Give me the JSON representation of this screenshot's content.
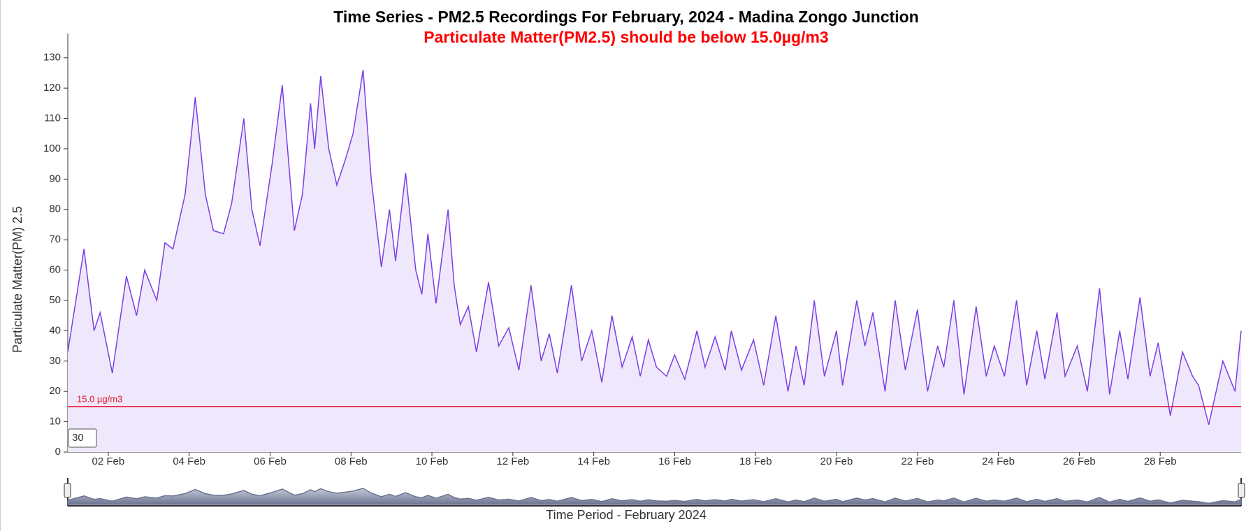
{
  "chart_data": {
    "type": "line",
    "title": "Time Series - PM2.5 Recordings For February, 2024 - Madina Zongo Junction",
    "subtitle": "Particulate Matter(PM2.5) should be below 15.0µg/m3",
    "y_label": "Particulate Matter(PM) 2.5",
    "x_label": "Time Period - February 2024",
    "x": [
      1.0,
      1.4,
      1.65,
      1.8,
      2.1,
      2.45,
      2.7,
      2.9,
      3.2,
      3.4,
      3.6,
      3.9,
      4.15,
      4.4,
      4.6,
      4.85,
      5.05,
      5.35,
      5.55,
      5.75,
      6.05,
      6.3,
      6.6,
      6.8,
      7.0,
      7.1,
      7.25,
      7.45,
      7.65,
      7.85,
      8.05,
      8.3,
      8.5,
      8.75,
      8.95,
      9.1,
      9.35,
      9.6,
      9.75,
      9.9,
      10.1,
      10.4,
      10.55,
      10.7,
      10.9,
      11.1,
      11.4,
      11.65,
      11.9,
      12.15,
      12.45,
      12.7,
      12.9,
      13.1,
      13.45,
      13.7,
      13.95,
      14.2,
      14.45,
      14.7,
      14.95,
      15.15,
      15.35,
      15.55,
      15.8,
      16.0,
      16.25,
      16.55,
      16.75,
      17.0,
      17.25,
      17.4,
      17.65,
      17.95,
      18.2,
      18.5,
      18.8,
      19.0,
      19.2,
      19.45,
      19.7,
      20.0,
      20.15,
      20.5,
      20.7,
      20.9,
      21.2,
      21.45,
      21.7,
      22.0,
      22.25,
      22.5,
      22.65,
      22.9,
      23.15,
      23.45,
      23.7,
      23.9,
      24.15,
      24.45,
      24.7,
      24.95,
      25.15,
      25.45,
      25.65,
      25.95,
      26.2,
      26.5,
      26.75,
      27.0,
      27.2,
      27.5,
      27.75,
      27.95,
      28.25,
      28.55,
      28.8,
      28.95,
      29.2,
      29.55,
      29.85,
      30.0
    ],
    "series": [
      {
        "name": "PM2.5",
        "color": "#7b3fe4",
        "fill": "#efe8fd",
        "values": [
          33,
          67,
          40,
          46,
          26,
          58,
          45,
          60,
          50,
          69,
          67,
          85,
          117,
          85,
          73,
          72,
          82,
          110,
          80,
          68,
          95,
          121,
          73,
          85,
          115,
          100,
          124,
          100,
          88,
          96,
          105,
          126,
          90,
          61,
          80,
          63,
          92,
          60,
          52,
          72,
          49,
          80,
          55,
          42,
          48,
          33,
          56,
          35,
          41,
          27,
          55,
          30,
          39,
          26,
          55,
          30,
          40,
          23,
          45,
          28,
          38,
          25,
          37,
          28,
          25,
          32,
          24,
          40,
          28,
          38,
          27,
          40,
          27,
          37,
          22,
          45,
          20,
          35,
          22,
          50,
          25,
          40,
          22,
          50,
          35,
          46,
          20,
          50,
          27,
          47,
          20,
          35,
          28,
          50,
          19,
          48,
          25,
          35,
          25,
          50,
          22,
          40,
          24,
          46,
          25,
          35,
          20,
          54,
          19,
          40,
          24,
          51,
          25,
          36,
          12,
          33,
          25,
          22,
          9,
          30,
          20,
          40
        ]
      }
    ],
    "xlim": [
      1,
      30
    ],
    "ylim": [
      0,
      138
    ],
    "xticks": [
      {
        "value": 2,
        "label": "02 Feb"
      },
      {
        "value": 4,
        "label": "04 Feb"
      },
      {
        "value": 6,
        "label": "06 Feb"
      },
      {
        "value": 8,
        "label": "08 Feb"
      },
      {
        "value": 10,
        "label": "10 Feb"
      },
      {
        "value": 12,
        "label": "12 Feb"
      },
      {
        "value": 14,
        "label": "14 Feb"
      },
      {
        "value": 16,
        "label": "16 Feb"
      },
      {
        "value": 18,
        "label": "18 Feb"
      },
      {
        "value": 20,
        "label": "20 Feb"
      },
      {
        "value": 22,
        "label": "22 Feb"
      },
      {
        "value": 24,
        "label": "24 Feb"
      },
      {
        "value": 26,
        "label": "26 Feb"
      },
      {
        "value": 28,
        "label": "28 Feb"
      }
    ],
    "yticks": [
      0,
      10,
      20,
      30,
      40,
      50,
      60,
      70,
      80,
      90,
      100,
      110,
      120,
      130
    ],
    "threshold": {
      "value": 15,
      "label": "15.0 µg/m3",
      "color": "#e8102a"
    },
    "box_label": "30"
  }
}
